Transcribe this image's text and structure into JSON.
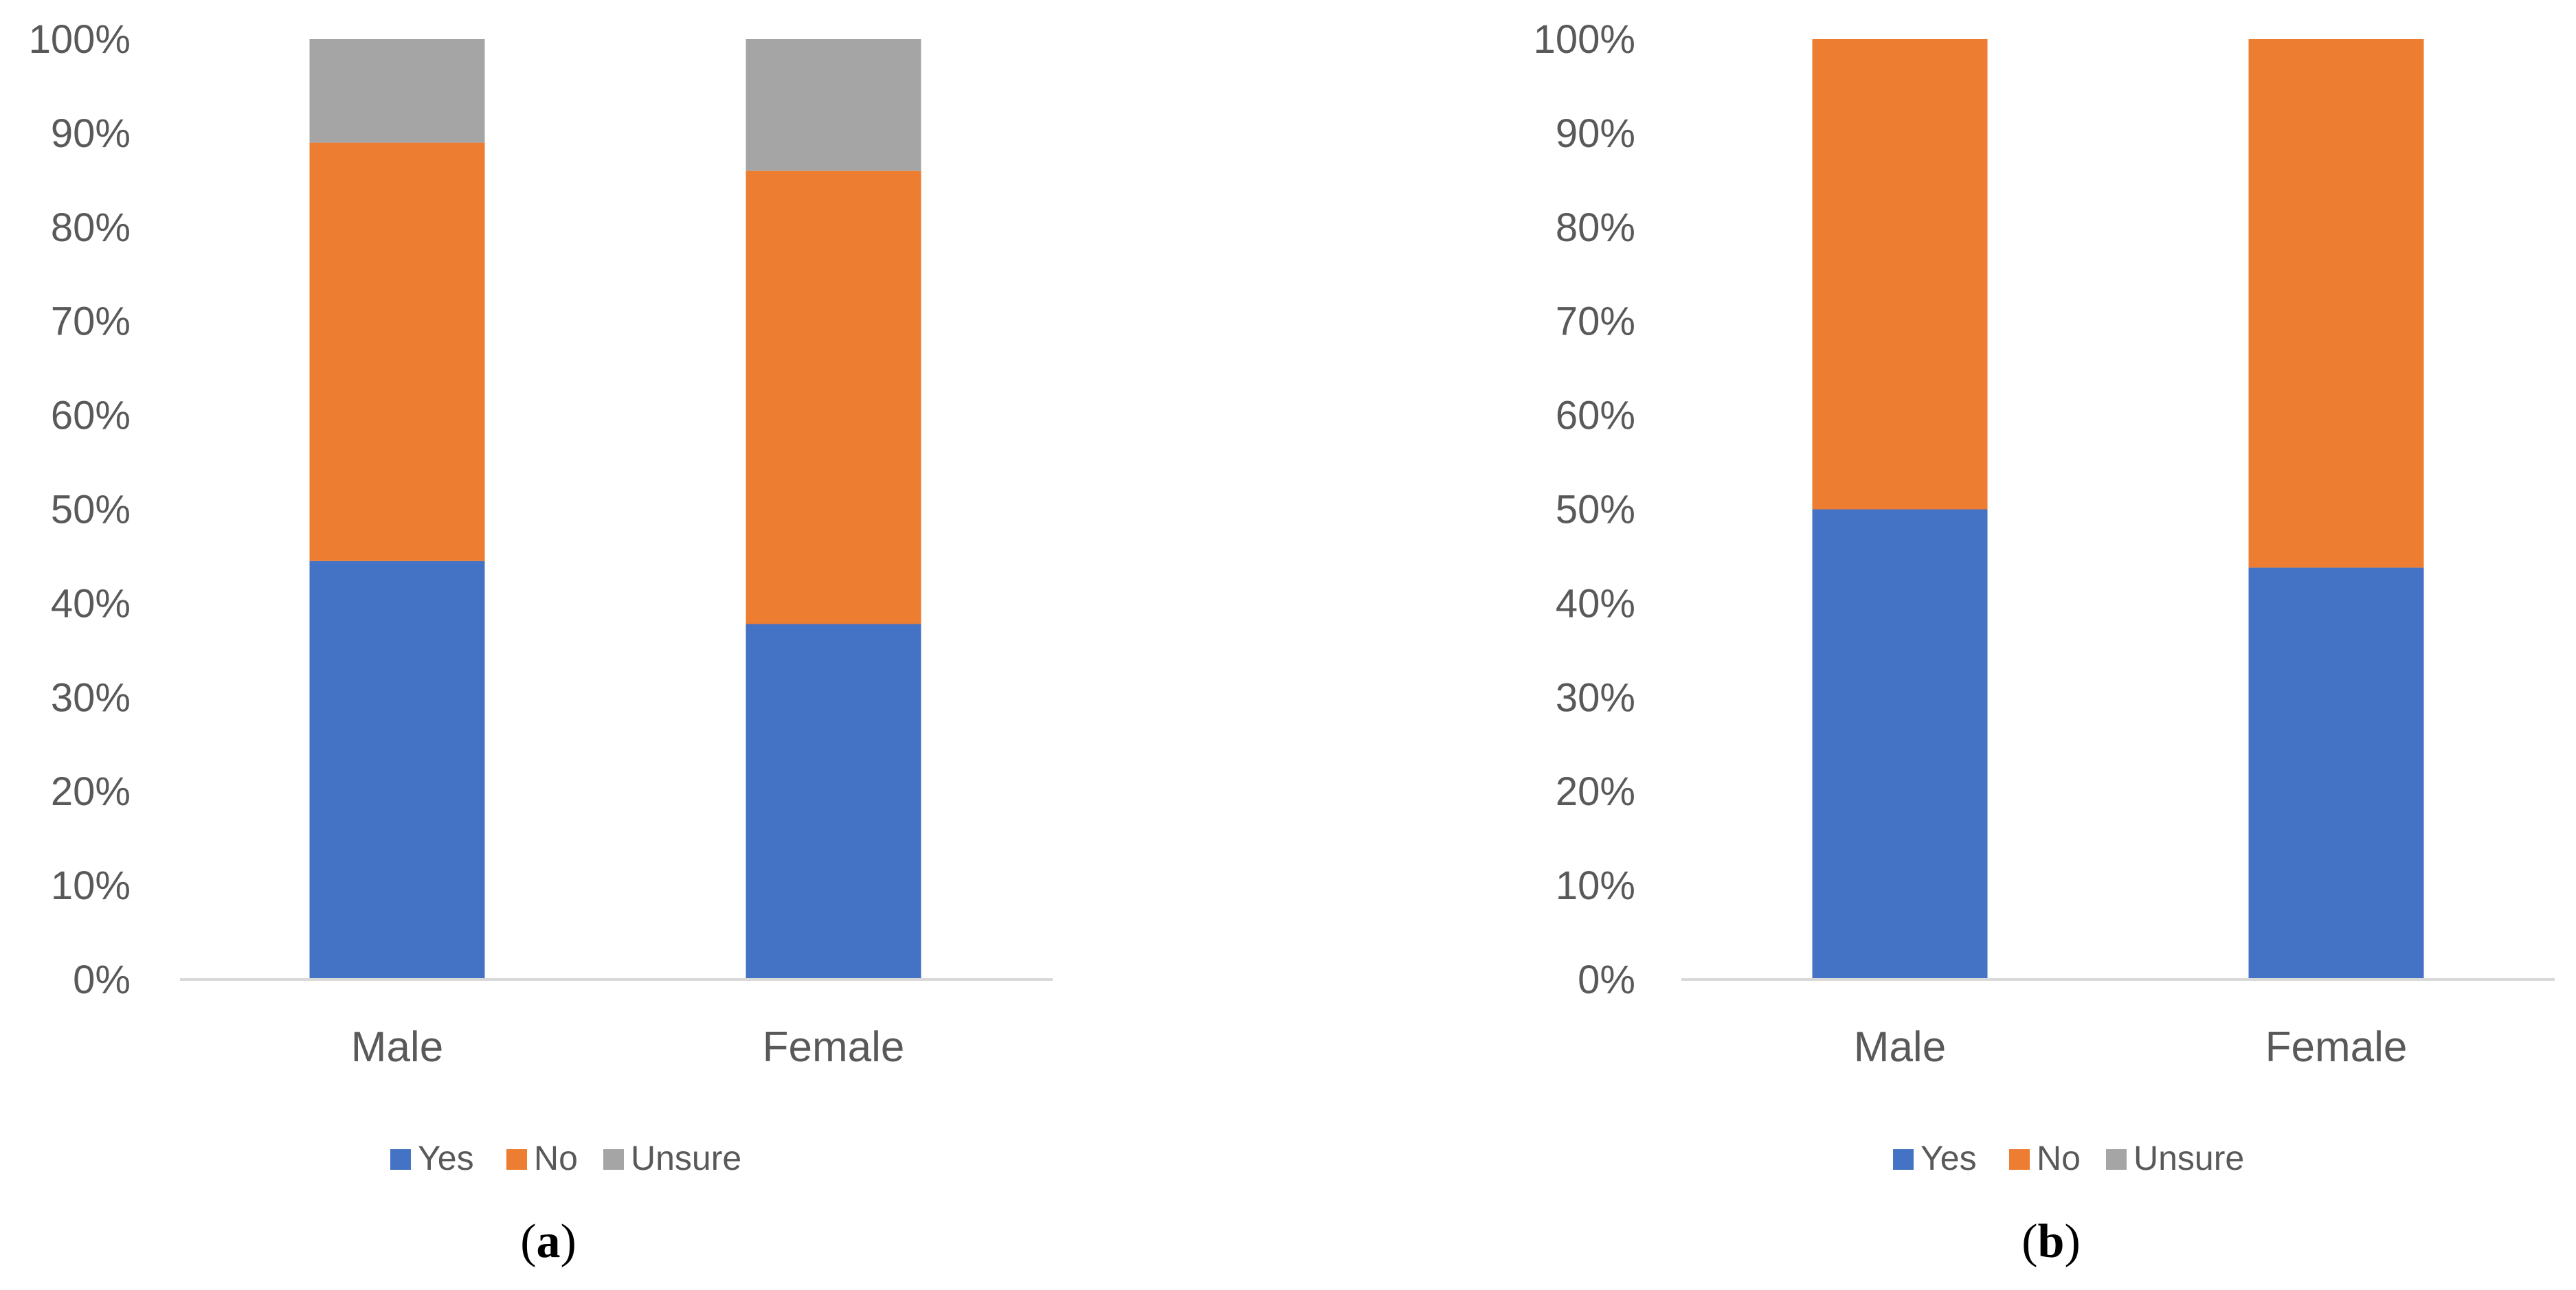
{
  "chart_data": [
    {
      "panel_label": {
        "open": "(",
        "letter": "a",
        "close": ")"
      },
      "type": "bar",
      "stacked": "percent",
      "categories": [
        "Male",
        "Female"
      ],
      "series": [
        {
          "name": "Yes",
          "color": "#4472C4",
          "values": [
            44.5,
            37.8
          ]
        },
        {
          "name": "No",
          "color": "#ED7D31",
          "values": [
            44.5,
            48.2
          ]
        },
        {
          "name": "Unsure",
          "color": "#A5A5A5",
          "values": [
            11.0,
            14.0
          ]
        }
      ],
      "ylim": [
        0,
        100
      ],
      "yticks": [
        "0%",
        "10%",
        "20%",
        "30%",
        "40%",
        "50%",
        "60%",
        "70%",
        "80%",
        "90%",
        "100%"
      ],
      "legend_position": "bottom",
      "grid": false
    },
    {
      "panel_label": {
        "open": "(",
        "letter": "b",
        "close": ")"
      },
      "type": "bar",
      "stacked": "percent",
      "categories": [
        "Male",
        "Female"
      ],
      "series": [
        {
          "name": "Yes",
          "color": "#4472C4",
          "values": [
            50.0,
            43.8
          ]
        },
        {
          "name": "No",
          "color": "#ED7D31",
          "values": [
            50.0,
            56.2
          ]
        },
        {
          "name": "Unsure",
          "color": "#A5A5A5",
          "values": [
            0,
            0
          ]
        }
      ],
      "ylim": [
        0,
        100
      ],
      "yticks": [
        "0%",
        "10%",
        "20%",
        "30%",
        "40%",
        "50%",
        "60%",
        "70%",
        "80%",
        "90%",
        "100%"
      ],
      "legend_position": "bottom",
      "grid": false
    }
  ]
}
